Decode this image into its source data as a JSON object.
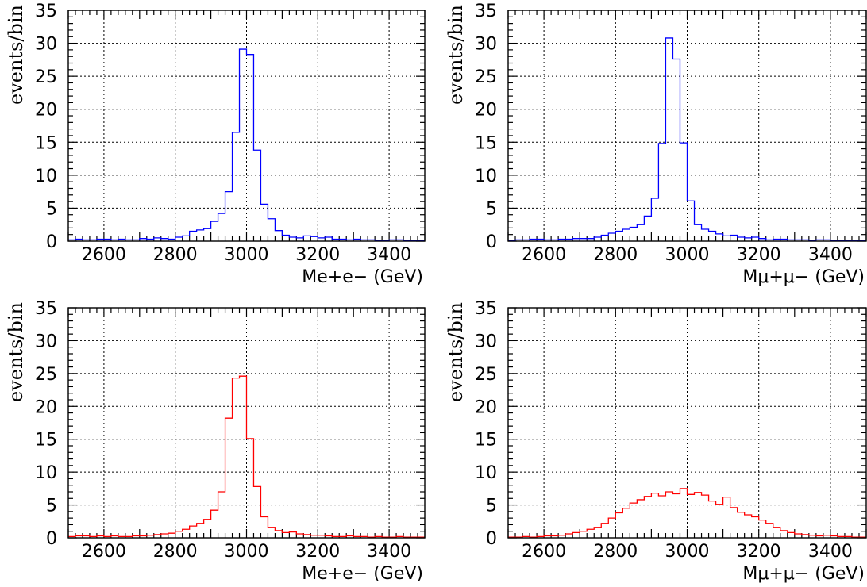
{
  "chart_data": [
    {
      "type": "histogram",
      "xlabel": "Me+e− (GeV)",
      "ylabel": "events/bin",
      "xlim": [
        2500,
        3500
      ],
      "ylim": [
        0,
        35
      ],
      "xticks": [
        2600,
        2800,
        3000,
        3200,
        3400
      ],
      "yticks": [
        0,
        5,
        10,
        15,
        20,
        25,
        30,
        35
      ],
      "grid": true,
      "line_color": "#0000ff",
      "bin_start": 2500,
      "bin_width": 20,
      "values": [
        0.2,
        0.3,
        0.2,
        0.2,
        0.3,
        0.3,
        0.2,
        0.3,
        0.2,
        0.2,
        0.4,
        0.3,
        0.5,
        0.4,
        0.3,
        0.6,
        0.8,
        1.5,
        1.7,
        1.9,
        3.0,
        4.2,
        7.5,
        16.5,
        29.1,
        28.3,
        13.8,
        5.6,
        3.4,
        1.6,
        0.9,
        0.6,
        0.5,
        0.8,
        0.7,
        0.5,
        0.6,
        0.3,
        0.3,
        0.2,
        0.3,
        0.2,
        0.2,
        0.1,
        0.1,
        0.2,
        0.2,
        0.1,
        0.1,
        0.1
      ]
    },
    {
      "type": "histogram",
      "xlabel": "Mμ+μ− (GeV)",
      "ylabel": "events/bin",
      "xlim": [
        2500,
        3500
      ],
      "ylim": [
        0,
        35
      ],
      "xticks": [
        2600,
        2800,
        3000,
        3200,
        3400
      ],
      "yticks": [
        0,
        5,
        10,
        15,
        20,
        25,
        30,
        35
      ],
      "grid": true,
      "line_color": "#0000ff",
      "bin_start": 2500,
      "bin_width": 20,
      "values": [
        0.1,
        0.2,
        0.2,
        0.3,
        0.3,
        0.2,
        0.2,
        0.3,
        0.3,
        0.4,
        0.4,
        0.4,
        0.6,
        0.9,
        1.2,
        1.5,
        1.8,
        2.1,
        2.5,
        3.8,
        6.5,
        14.8,
        30.8,
        27.6,
        14.9,
        6.1,
        2.5,
        1.8,
        1.5,
        1.1,
        0.8,
        0.9,
        0.6,
        0.5,
        0.6,
        0.4,
        0.2,
        0.3,
        0.3,
        0.2,
        0.2,
        0.2,
        0.1,
        0.2,
        0.2,
        0.1,
        0.1,
        0.1,
        0.1,
        0.1
      ]
    },
    {
      "type": "histogram",
      "xlabel": "Me+e− (GeV)",
      "ylabel": "events/bin",
      "xlim": [
        2500,
        3500
      ],
      "ylim": [
        0,
        35
      ],
      "xticks": [
        2600,
        2800,
        3000,
        3200,
        3400
      ],
      "yticks": [
        0,
        5,
        10,
        15,
        20,
        25,
        30,
        35
      ],
      "grid": true,
      "line_color": "#ff0000",
      "bin_start": 2500,
      "bin_width": 20,
      "values": [
        0.2,
        0.3,
        0.3,
        0.2,
        0.3,
        0.2,
        0.3,
        0.2,
        0.2,
        0.3,
        0.3,
        0.4,
        0.5,
        0.6,
        0.7,
        1.0,
        1.3,
        1.8,
        2.2,
        2.8,
        4.2,
        7.0,
        18.2,
        24.3,
        24.6,
        15.1,
        7.8,
        3.2,
        1.6,
        1.1,
        0.8,
        0.9,
        0.6,
        0.5,
        0.4,
        0.4,
        0.3,
        0.2,
        0.2,
        0.3,
        0.2,
        0.2,
        0.1,
        0.2,
        0.1,
        0.1,
        0.2,
        0.1,
        0.1,
        0.1
      ]
    },
    {
      "type": "histogram",
      "xlabel": "Mμ+μ− (GeV)",
      "ylabel": "events/bin",
      "xlim": [
        2500,
        3500
      ],
      "ylim": [
        0,
        35
      ],
      "xticks": [
        2600,
        2800,
        3000,
        3200,
        3400
      ],
      "yticks": [
        0,
        5,
        10,
        15,
        20,
        25,
        30,
        35
      ],
      "grid": true,
      "line_color": "#ff0000",
      "bin_start": 2500,
      "bin_width": 20,
      "values": [
        0.1,
        0.1,
        0.2,
        0.1,
        0.2,
        0.3,
        0.3,
        0.4,
        0.6,
        0.8,
        1.0,
        1.3,
        1.6,
        2.2,
        3.0,
        3.8,
        4.5,
        5.3,
        5.8,
        6.3,
        6.8,
        6.4,
        7.0,
        6.7,
        7.5,
        6.6,
        6.9,
        6.5,
        5.6,
        5.1,
        6.2,
        4.6,
        3.9,
        3.5,
        3.2,
        2.7,
        2.2,
        1.6,
        1.1,
        0.8,
        0.6,
        0.5,
        0.4,
        0.3,
        0.4,
        0.3,
        0.2,
        0.2,
        0.1,
        0.1
      ]
    }
  ]
}
